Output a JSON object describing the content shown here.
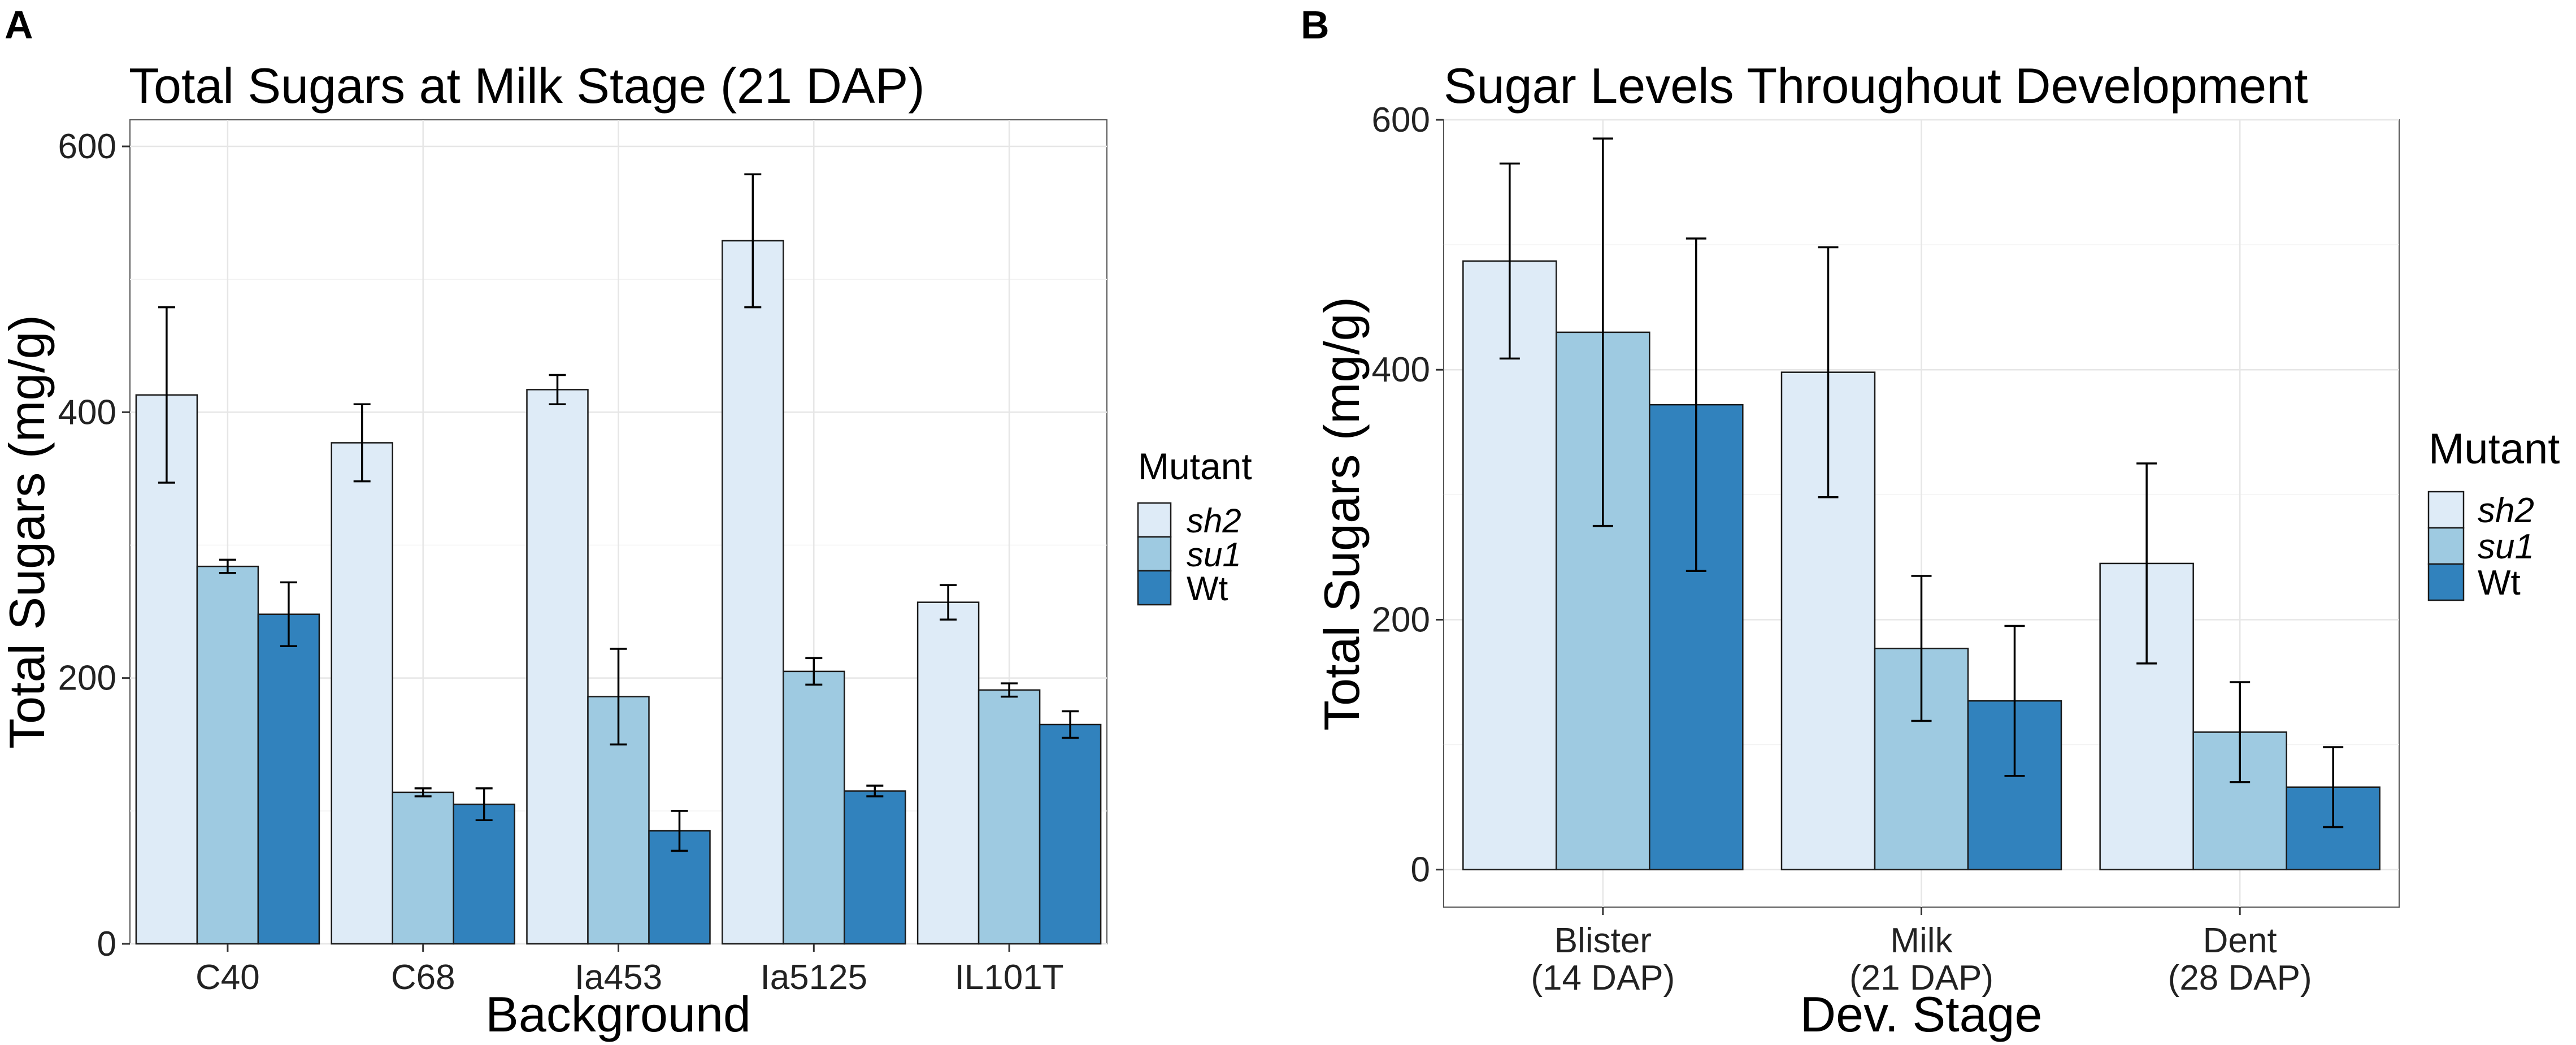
{
  "colors": {
    "sh2": "#deebf7",
    "su1": "#9ecae1",
    "Wt": "#3182bd"
  },
  "chart_data": [
    {
      "panel": "A",
      "type": "bar",
      "title": "Total Sugars at Milk Stage (21 DAP)",
      "xlabel": "Background",
      "ylabel": "Total Sugars (mg/g)",
      "ylim": [
        0,
        620
      ],
      "yticks": [
        0,
        200,
        400,
        600
      ],
      "grid": true,
      "categories": [
        "C40",
        "C68",
        "Ia453",
        "Ia5125",
        "IL101T"
      ],
      "legend": {
        "title": "Mutant",
        "position": "right",
        "entries": [
          {
            "label": "sh2",
            "italic": true
          },
          {
            "label": "su1",
            "italic": true
          },
          {
            "label": "Wt",
            "italic": false
          }
        ]
      },
      "series": [
        {
          "name": "sh2",
          "values": [
            413,
            377,
            417,
            529,
            257
          ],
          "error": [
            66,
            29,
            11,
            50,
            13
          ]
        },
        {
          "name": "su1",
          "values": [
            284,
            114,
            186,
            205,
            191
          ],
          "error": [
            5,
            3,
            36,
            10,
            5
          ]
        },
        {
          "name": "Wt",
          "values": [
            248,
            105,
            85,
            115,
            165
          ],
          "error": [
            24,
            12,
            15,
            4,
            10
          ]
        }
      ]
    },
    {
      "panel": "B",
      "type": "bar",
      "title": "Sugar Levels Throughout Development",
      "xlabel": "Dev. Stage",
      "ylabel": "Total Sugars (mg/g)",
      "ylim": [
        -30,
        600
      ],
      "yticks": [
        0,
        200,
        400,
        600
      ],
      "grid": true,
      "categories": [
        "Blister\n(14 DAP)",
        "Milk\n(21 DAP)",
        "Dent\n(28 DAP)"
      ],
      "legend": {
        "title": "Mutant",
        "position": "right",
        "entries": [
          {
            "label": "sh2",
            "italic": true
          },
          {
            "label": "su1",
            "italic": true
          },
          {
            "label": "Wt",
            "italic": false
          }
        ]
      },
      "series": [
        {
          "name": "sh2",
          "values": [
            487,
            398,
            245
          ],
          "error": [
            78,
            100,
            80
          ]
        },
        {
          "name": "su1",
          "values": [
            430,
            177,
            110
          ],
          "error": [
            155,
            58,
            40
          ]
        },
        {
          "name": "Wt",
          "values": [
            372,
            135,
            66
          ],
          "error": [
            133,
            60,
            32
          ]
        }
      ]
    }
  ]
}
